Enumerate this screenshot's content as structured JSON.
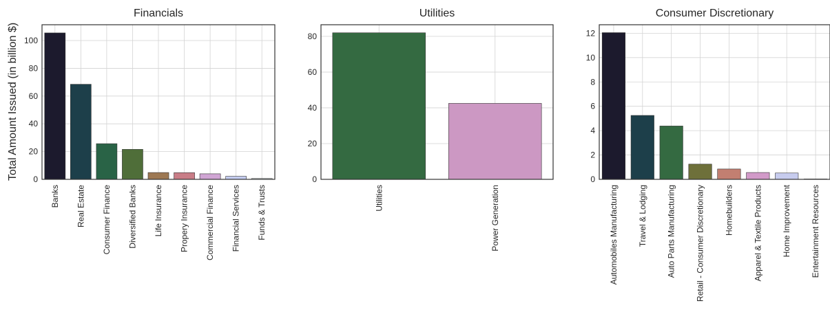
{
  "ylabel": "Total Amount Issued (in billion $)",
  "chart_data": [
    {
      "type": "bar",
      "title": "Financials",
      "categories": [
        "Banks",
        "Real Estate",
        "Consumer Finance",
        "Diversified Banks",
        "Life Insurance",
        "Propery Insurance",
        "Commercial Finance",
        "Financial Services",
        "Funds & Trusts"
      ],
      "values": [
        105.5,
        68.5,
        25.7,
        21.6,
        4.9,
        4.8,
        4.0,
        2.2,
        0.6
      ],
      "colors": [
        "#1c1a2d",
        "#1d3f4a",
        "#296346",
        "#4f6e39",
        "#9d7853",
        "#c97d87",
        "#d0a5d4",
        "#c4ccf0",
        "#dff0f0"
      ],
      "ylim": [
        0,
        111.4
      ],
      "yticks": [
        0,
        20,
        40,
        60,
        80,
        100
      ],
      "grid": true
    },
    {
      "type": "bar",
      "title": "Utilities",
      "categories": [
        "Utilities",
        "Power Generation"
      ],
      "values": [
        82.0,
        42.5
      ],
      "colors": [
        "#346a41",
        "#cc98c3"
      ],
      "ylim": [
        0,
        86.5
      ],
      "yticks": [
        0,
        20,
        40,
        60,
        80
      ],
      "grid": true
    },
    {
      "type": "bar",
      "title": "Consumer Discretionary",
      "categories": [
        "Automobiles Manufacturing",
        "Travel & Lodging",
        "Auto Parts Manufacturing",
        "Retail - Consumer Discretionary",
        "Homebuilders",
        "Apparel & Textile Products",
        "Home Improvement",
        "Entertainment Resources"
      ],
      "values": [
        12.05,
        5.25,
        4.38,
        1.25,
        0.85,
        0.56,
        0.52,
        0.03
      ],
      "colors": [
        "#1c1a2d",
        "#1d3f4a",
        "#346a41",
        "#6e703a",
        "#c27f71",
        "#d29ac9",
        "#c7ccee",
        "#dff0f0"
      ],
      "ylim": [
        0,
        12.7
      ],
      "yticks": [
        0,
        2,
        4,
        6,
        8,
        10,
        12
      ],
      "grid": true
    }
  ]
}
